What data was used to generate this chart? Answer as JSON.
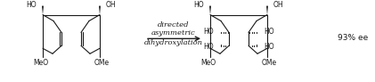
{
  "bg_color": "#ffffff",
  "line_color": "#1a1a1a",
  "arrow_text": [
    "directed",
    "asymmetric",
    "dihydroxylation"
  ],
  "ee_label": "93% ee",
  "figsize": [
    4.21,
    0.92
  ],
  "dpi": 100,
  "lw": 0.8
}
